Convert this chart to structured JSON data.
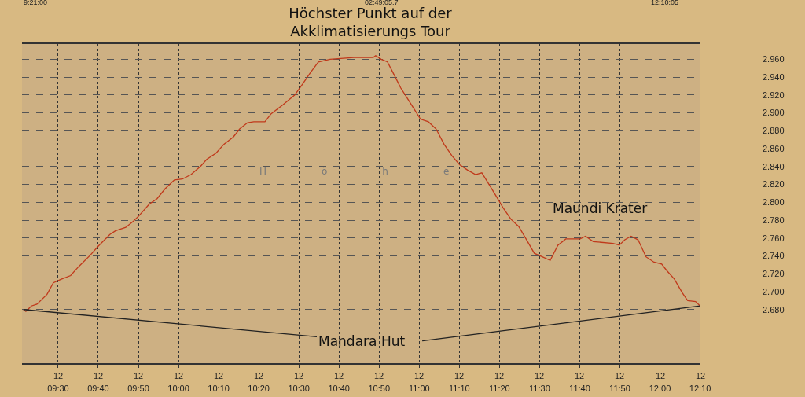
{
  "chart_data": {
    "type": "line",
    "title": "Höchster Punkt auf der\nAkklimatisierungs Tour",
    "ylabel": "Höhe",
    "x": [
      9.356,
      9.366,
      9.389,
      9.412,
      9.454,
      9.48,
      9.513,
      9.552,
      9.585,
      9.634,
      9.667,
      9.715,
      9.738,
      9.781,
      9.813,
      9.836,
      9.879,
      9.911,
      9.944,
      9.983,
      10.016,
      10.052,
      10.091,
      10.117,
      10.156,
      10.189,
      10.228,
      10.254,
      10.287,
      10.313,
      10.359,
      10.385,
      10.434,
      10.483,
      10.515,
      10.548,
      10.581,
      10.63,
      10.728,
      10.809,
      10.819,
      10.842,
      10.868,
      10.891,
      10.923,
      10.956,
      10.989,
      11.005,
      11.038,
      11.07,
      11.103,
      11.136,
      11.168,
      11.201,
      11.234,
      11.26,
      11.283,
      11.315,
      11.348,
      11.381,
      11.413,
      11.446,
      11.478,
      11.511,
      11.544,
      11.576,
      11.609,
      11.668,
      11.691,
      11.723,
      11.805,
      11.831,
      11.854,
      11.88,
      11.909,
      11.942,
      11.975,
      12.007,
      12.027,
      12.06,
      12.092,
      12.115,
      12.148,
      12.167
    ],
    "series": [
      {
        "color": "#c0391b",
        "values": [
          2.68,
          2.678,
          2.684,
          2.686,
          2.697,
          2.71,
          2.714,
          2.718,
          2.728,
          2.741,
          2.751,
          2.764,
          2.768,
          2.772,
          2.779,
          2.785,
          2.798,
          2.804,
          2.815,
          2.825,
          2.826,
          2.831,
          2.84,
          2.848,
          2.855,
          2.865,
          2.873,
          2.882,
          2.889,
          2.89,
          2.89,
          2.899,
          2.909,
          2.92,
          2.932,
          2.945,
          2.957,
          2.96,
          2.962,
          2.962,
          2.964,
          2.96,
          2.957,
          2.945,
          2.928,
          2.914,
          2.9,
          2.893,
          2.89,
          2.882,
          2.865,
          2.852,
          2.842,
          2.836,
          2.831,
          2.833,
          2.823,
          2.809,
          2.794,
          2.781,
          2.773,
          2.758,
          2.743,
          2.739,
          2.735,
          2.752,
          2.759,
          2.759,
          2.762,
          2.756,
          2.754,
          2.752,
          2.758,
          2.762,
          2.758,
          2.739,
          2.733,
          2.731,
          2.724,
          2.714,
          2.699,
          2.69,
          2.689,
          2.684
        ]
      }
    ],
    "xlim": [
      9.35,
      12.1681
    ],
    "ylim": [
      2.62,
      2.977
    ],
    "xticks": [
      {
        "value": 9.5,
        "label": "09:30"
      },
      {
        "value": 9.6667,
        "label": "09:40"
      },
      {
        "value": 9.8333,
        "label": "09:50"
      },
      {
        "value": 10,
        "label": "10:00"
      },
      {
        "value": 10.1667,
        "label": "10:10"
      },
      {
        "value": 10.3333,
        "label": "10:20"
      },
      {
        "value": 10.5,
        "label": "10:30"
      },
      {
        "value": 10.6667,
        "label": "10:40"
      },
      {
        "value": 10.8333,
        "label": "10:50"
      },
      {
        "value": 11,
        "label": "11:00"
      },
      {
        "value": 11.1667,
        "label": "11:10"
      },
      {
        "value": 11.3333,
        "label": "11:20"
      },
      {
        "value": 11.5,
        "label": "11:30"
      },
      {
        "value": 11.6667,
        "label": "11:40"
      },
      {
        "value": 11.8333,
        "label": "11:50"
      },
      {
        "value": 12,
        "label": "12:00"
      },
      {
        "value": 12.1667,
        "label": "12:10"
      }
    ],
    "yticks": [
      {
        "value": 2.68,
        "label": "2.680"
      },
      {
        "value": 2.7,
        "label": "2.700"
      },
      {
        "value": 2.72,
        "label": "2.720"
      },
      {
        "value": 2.74,
        "label": "2.740"
      },
      {
        "value": 2.76,
        "label": "2.760"
      },
      {
        "value": 2.78,
        "label": "2.780"
      },
      {
        "value": 2.8,
        "label": "2.800"
      },
      {
        "value": 2.82,
        "label": "2.820"
      },
      {
        "value": 2.84,
        "label": "2.840"
      },
      {
        "value": 2.86,
        "label": "2.860"
      },
      {
        "value": 2.88,
        "label": "2.880"
      },
      {
        "value": 2.9,
        "label": "2.900"
      },
      {
        "value": 2.92,
        "label": "2.920"
      },
      {
        "value": 2.94,
        "label": "2.940"
      },
      {
        "value": 2.96,
        "label": "2.960"
      }
    ],
    "annotations": [
      "9:21:00",
      "02:49:05.7",
      "12:10:05",
      "12",
      "12",
      "12",
      "12",
      "12",
      "12",
      "12",
      "12",
      "12",
      "12",
      "12",
      "12",
      "12",
      "12",
      "12",
      "12",
      "12",
      {
        "text": "Maundi Krater",
        "x": 11.75,
        "y": 2.76
      },
      {
        "text": "Mandara Hut",
        "x": 9.356,
        "y": 2.68
      }
    ],
    "grid": true,
    "marker": "none",
    "line_style": "solid"
  }
}
